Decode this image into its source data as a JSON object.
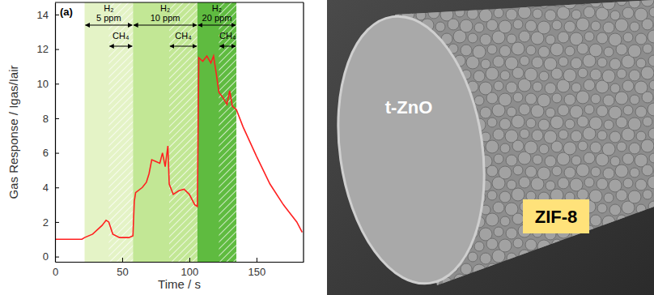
{
  "chart_data": {
    "type": "line",
    "panel_label": "(a)",
    "x_label": "Time / s",
    "y_label": "Gas Response / Igas/Iair",
    "xlim": [
      0,
      185
    ],
    "ylim": [
      -0.3,
      14.7
    ],
    "xticks": [
      0,
      50,
      100,
      150
    ],
    "yticks": [
      0,
      2,
      4,
      6,
      8,
      10,
      12,
      14
    ],
    "x": [
      0,
      10,
      20,
      22,
      28,
      35,
      38,
      40,
      43,
      48,
      55,
      58,
      59,
      60,
      65,
      68,
      70,
      72,
      75,
      78,
      80,
      82,
      84,
      85,
      88,
      92,
      96,
      100,
      104,
      106,
      107,
      110,
      113,
      116,
      118,
      120,
      122,
      125,
      128,
      130,
      132,
      135,
      140,
      150,
      160,
      170,
      180,
      184
    ],
    "series": [
      {
        "color": "#ff2020",
        "values": [
          1.0,
          1.0,
          1.0,
          1.1,
          1.3,
          1.8,
          2.1,
          2.0,
          1.3,
          1.1,
          1.1,
          1.2,
          3.2,
          3.7,
          4.0,
          4.3,
          4.8,
          5.6,
          5.5,
          5.4,
          6.0,
          5.2,
          6.4,
          4.2,
          3.6,
          3.8,
          3.9,
          3.6,
          3.0,
          2.9,
          11.5,
          11.3,
          11.6,
          11.2,
          11.6,
          10.6,
          9.5,
          9.2,
          8.8,
          9.6,
          8.7,
          8.5,
          7.5,
          5.8,
          4.2,
          3.0,
          2.0,
          1.4
        ]
      }
    ],
    "regions": [
      {
        "label": "H₂",
        "sublabel": "5 ppm",
        "start": 22,
        "end": 58,
        "color": "#e4f3c6"
      },
      {
        "label": "H₂",
        "sublabel": "10 ppm",
        "start": 58,
        "end": 106,
        "color": "#c2e795"
      },
      {
        "label": "H₂",
        "sublabel": "20 ppm",
        "start": 106,
        "end": 135,
        "color": "#5fbb40"
      }
    ],
    "ch4_regions": [
      {
        "label": "CH₄",
        "start": 40,
        "end": 58
      },
      {
        "label": "CH₄",
        "start": 85,
        "end": 106
      },
      {
        "label": "CH₄",
        "start": 122,
        "end": 135
      }
    ]
  },
  "micrograph": {
    "labels": [
      "t-ZnO",
      "ZIF-8"
    ]
  }
}
